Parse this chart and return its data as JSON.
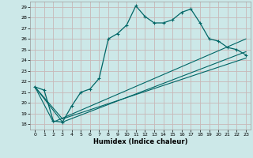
{
  "xlabel": "Humidex (Indice chaleur)",
  "bg_color": "#cce8e8",
  "grid_color": "#aacccc",
  "line_color": "#006666",
  "xlim": [
    -0.5,
    23.5
  ],
  "ylim": [
    17.5,
    29.5
  ],
  "xticks": [
    0,
    1,
    2,
    3,
    4,
    5,
    6,
    7,
    8,
    9,
    10,
    11,
    12,
    13,
    14,
    15,
    16,
    17,
    18,
    19,
    20,
    21,
    22,
    23
  ],
  "yticks": [
    18,
    19,
    20,
    21,
    22,
    23,
    24,
    25,
    26,
    27,
    28,
    29
  ],
  "series1_x": [
    0,
    1,
    2,
    3,
    4,
    5,
    6,
    7,
    8,
    9,
    10,
    11,
    12,
    13,
    14,
    15,
    16,
    17,
    18,
    19,
    20,
    21,
    22,
    23
  ],
  "series1_y": [
    21.5,
    21.2,
    18.3,
    18.2,
    19.7,
    21.0,
    21.3,
    22.3,
    26.0,
    26.5,
    27.3,
    29.1,
    28.1,
    27.5,
    27.5,
    27.8,
    28.5,
    28.8,
    27.5,
    26.0,
    25.8,
    25.2,
    25.0,
    24.5
  ],
  "line2_x": [
    0,
    2,
    23
  ],
  "line2_y": [
    21.5,
    18.2,
    26.0
  ],
  "line3_x": [
    0,
    3,
    23
  ],
  "line3_y": [
    21.5,
    18.2,
    24.8
  ],
  "line4_x": [
    0,
    3,
    23
  ],
  "line4_y": [
    21.5,
    18.5,
    24.2
  ]
}
